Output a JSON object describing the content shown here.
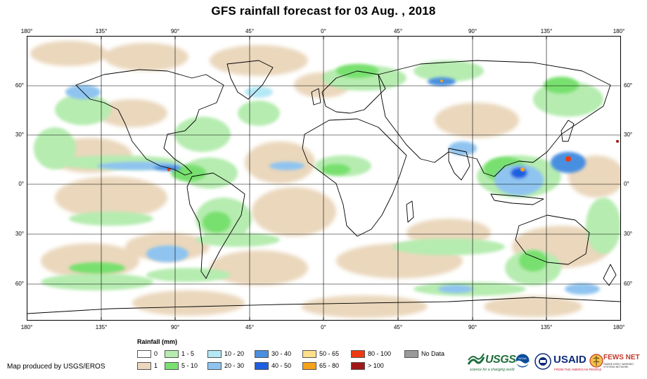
{
  "title": "GFS rainfall forecast for 03 Aug. , 2018",
  "axes": {
    "lon_labels": [
      "180°",
      "135°",
      "90°",
      "45°",
      "0°",
      "45°",
      "90°",
      "135°",
      "180°"
    ],
    "lat_labels": [
      "60°",
      "30°",
      "0°",
      "30°",
      "60°"
    ]
  },
  "legend": {
    "title": "Rainfall (mm)",
    "items": [
      {
        "label": "0",
        "color": "#ffffff"
      },
      {
        "label": "1",
        "color": "#ead7bc"
      },
      {
        "label": "1 - 5",
        "color": "#b6ecb0"
      },
      {
        "label": "5 - 10",
        "color": "#78e06e"
      },
      {
        "label": "10 - 20",
        "color": "#b5e8f5"
      },
      {
        "label": "20 - 30",
        "color": "#8fc4f0"
      },
      {
        "label": "30 - 40",
        "color": "#4a8fe0"
      },
      {
        "label": "40 - 50",
        "color": "#1f5ee0"
      },
      {
        "label": "50 - 65",
        "color": "#ffe08a"
      },
      {
        "label": "65 - 80",
        "color": "#f7a21b"
      },
      {
        "label": "80 - 100",
        "color": "#ee3a12"
      },
      {
        "label": "> 100",
        "color": "#a01818"
      },
      {
        "label": "No Data",
        "color": "#9a9a9a"
      }
    ]
  },
  "credit": "Map produced by USGS/EROS",
  "logos": {
    "usgs": "USGS",
    "usgs_tagline": "science for a changing world",
    "noaa": "NOAA",
    "usaid": "USAID",
    "usaid_tagline": "FROM THE AMERICAN PEOPLE",
    "fews": "FEWS NET",
    "fews_tagline": "FAMINE EARLY WARNING SYSTEMS NETWORK"
  },
  "colors": {
    "land_outline": "#000000",
    "grid": "#000000",
    "ocean_base": "#ffffff"
  }
}
